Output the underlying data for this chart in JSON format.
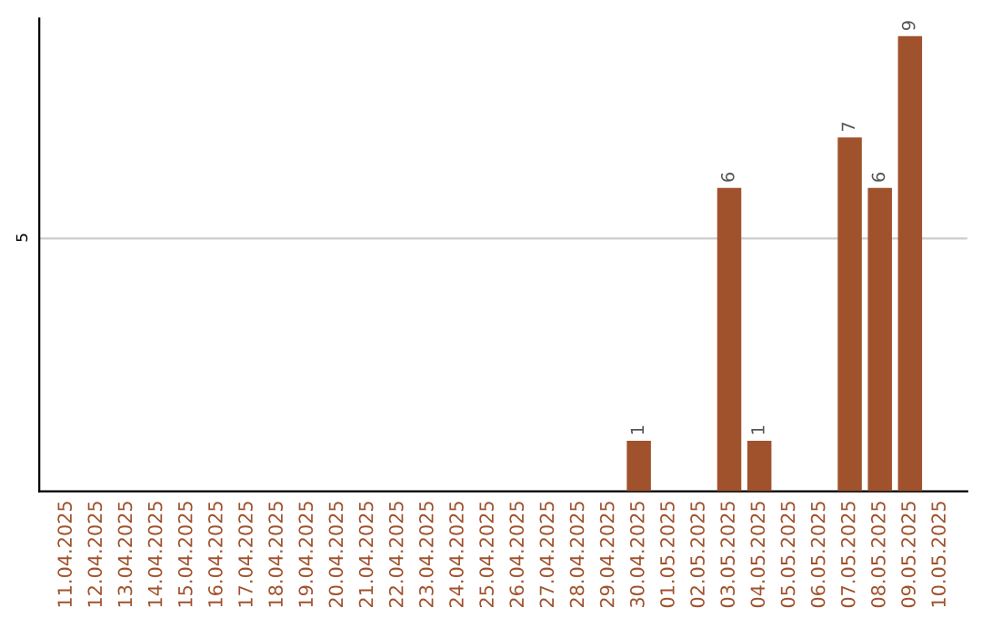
{
  "chart_data": {
    "type": "bar",
    "categories": [
      "11.04.2025",
      "12.04.2025",
      "13.04.2025",
      "14.04.2025",
      "15.04.2025",
      "16.04.2025",
      "17.04.2025",
      "18.04.2025",
      "19.04.2025",
      "20.04.2025",
      "21.04.2025",
      "22.04.2025",
      "23.04.2025",
      "24.04.2025",
      "25.04.2025",
      "26.04.2025",
      "27.04.2025",
      "28.04.2025",
      "29.04.2025",
      "30.04.2025",
      "01.05.2025",
      "02.05.2025",
      "03.05.2025",
      "04.05.2025",
      "05.05.2025",
      "06.05.2025",
      "07.05.2025",
      "08.05.2025",
      "09.05.2025",
      "10.05.2025"
    ],
    "values": [
      null,
      null,
      null,
      null,
      null,
      null,
      null,
      null,
      null,
      null,
      null,
      null,
      null,
      null,
      null,
      null,
      null,
      null,
      null,
      1,
      null,
      null,
      6,
      1,
      null,
      null,
      7,
      6,
      9,
      null
    ],
    "value_labels": [
      null,
      null,
      null,
      null,
      null,
      null,
      null,
      null,
      null,
      null,
      null,
      null,
      null,
      null,
      null,
      null,
      null,
      null,
      null,
      "1",
      null,
      null,
      "6",
      "1",
      null,
      null,
      "7",
      "6",
      "9",
      null
    ],
    "color": "#a0522d",
    "ylim": [
      0,
      9.35
    ],
    "yticks": [
      5
    ],
    "grid": "y"
  }
}
